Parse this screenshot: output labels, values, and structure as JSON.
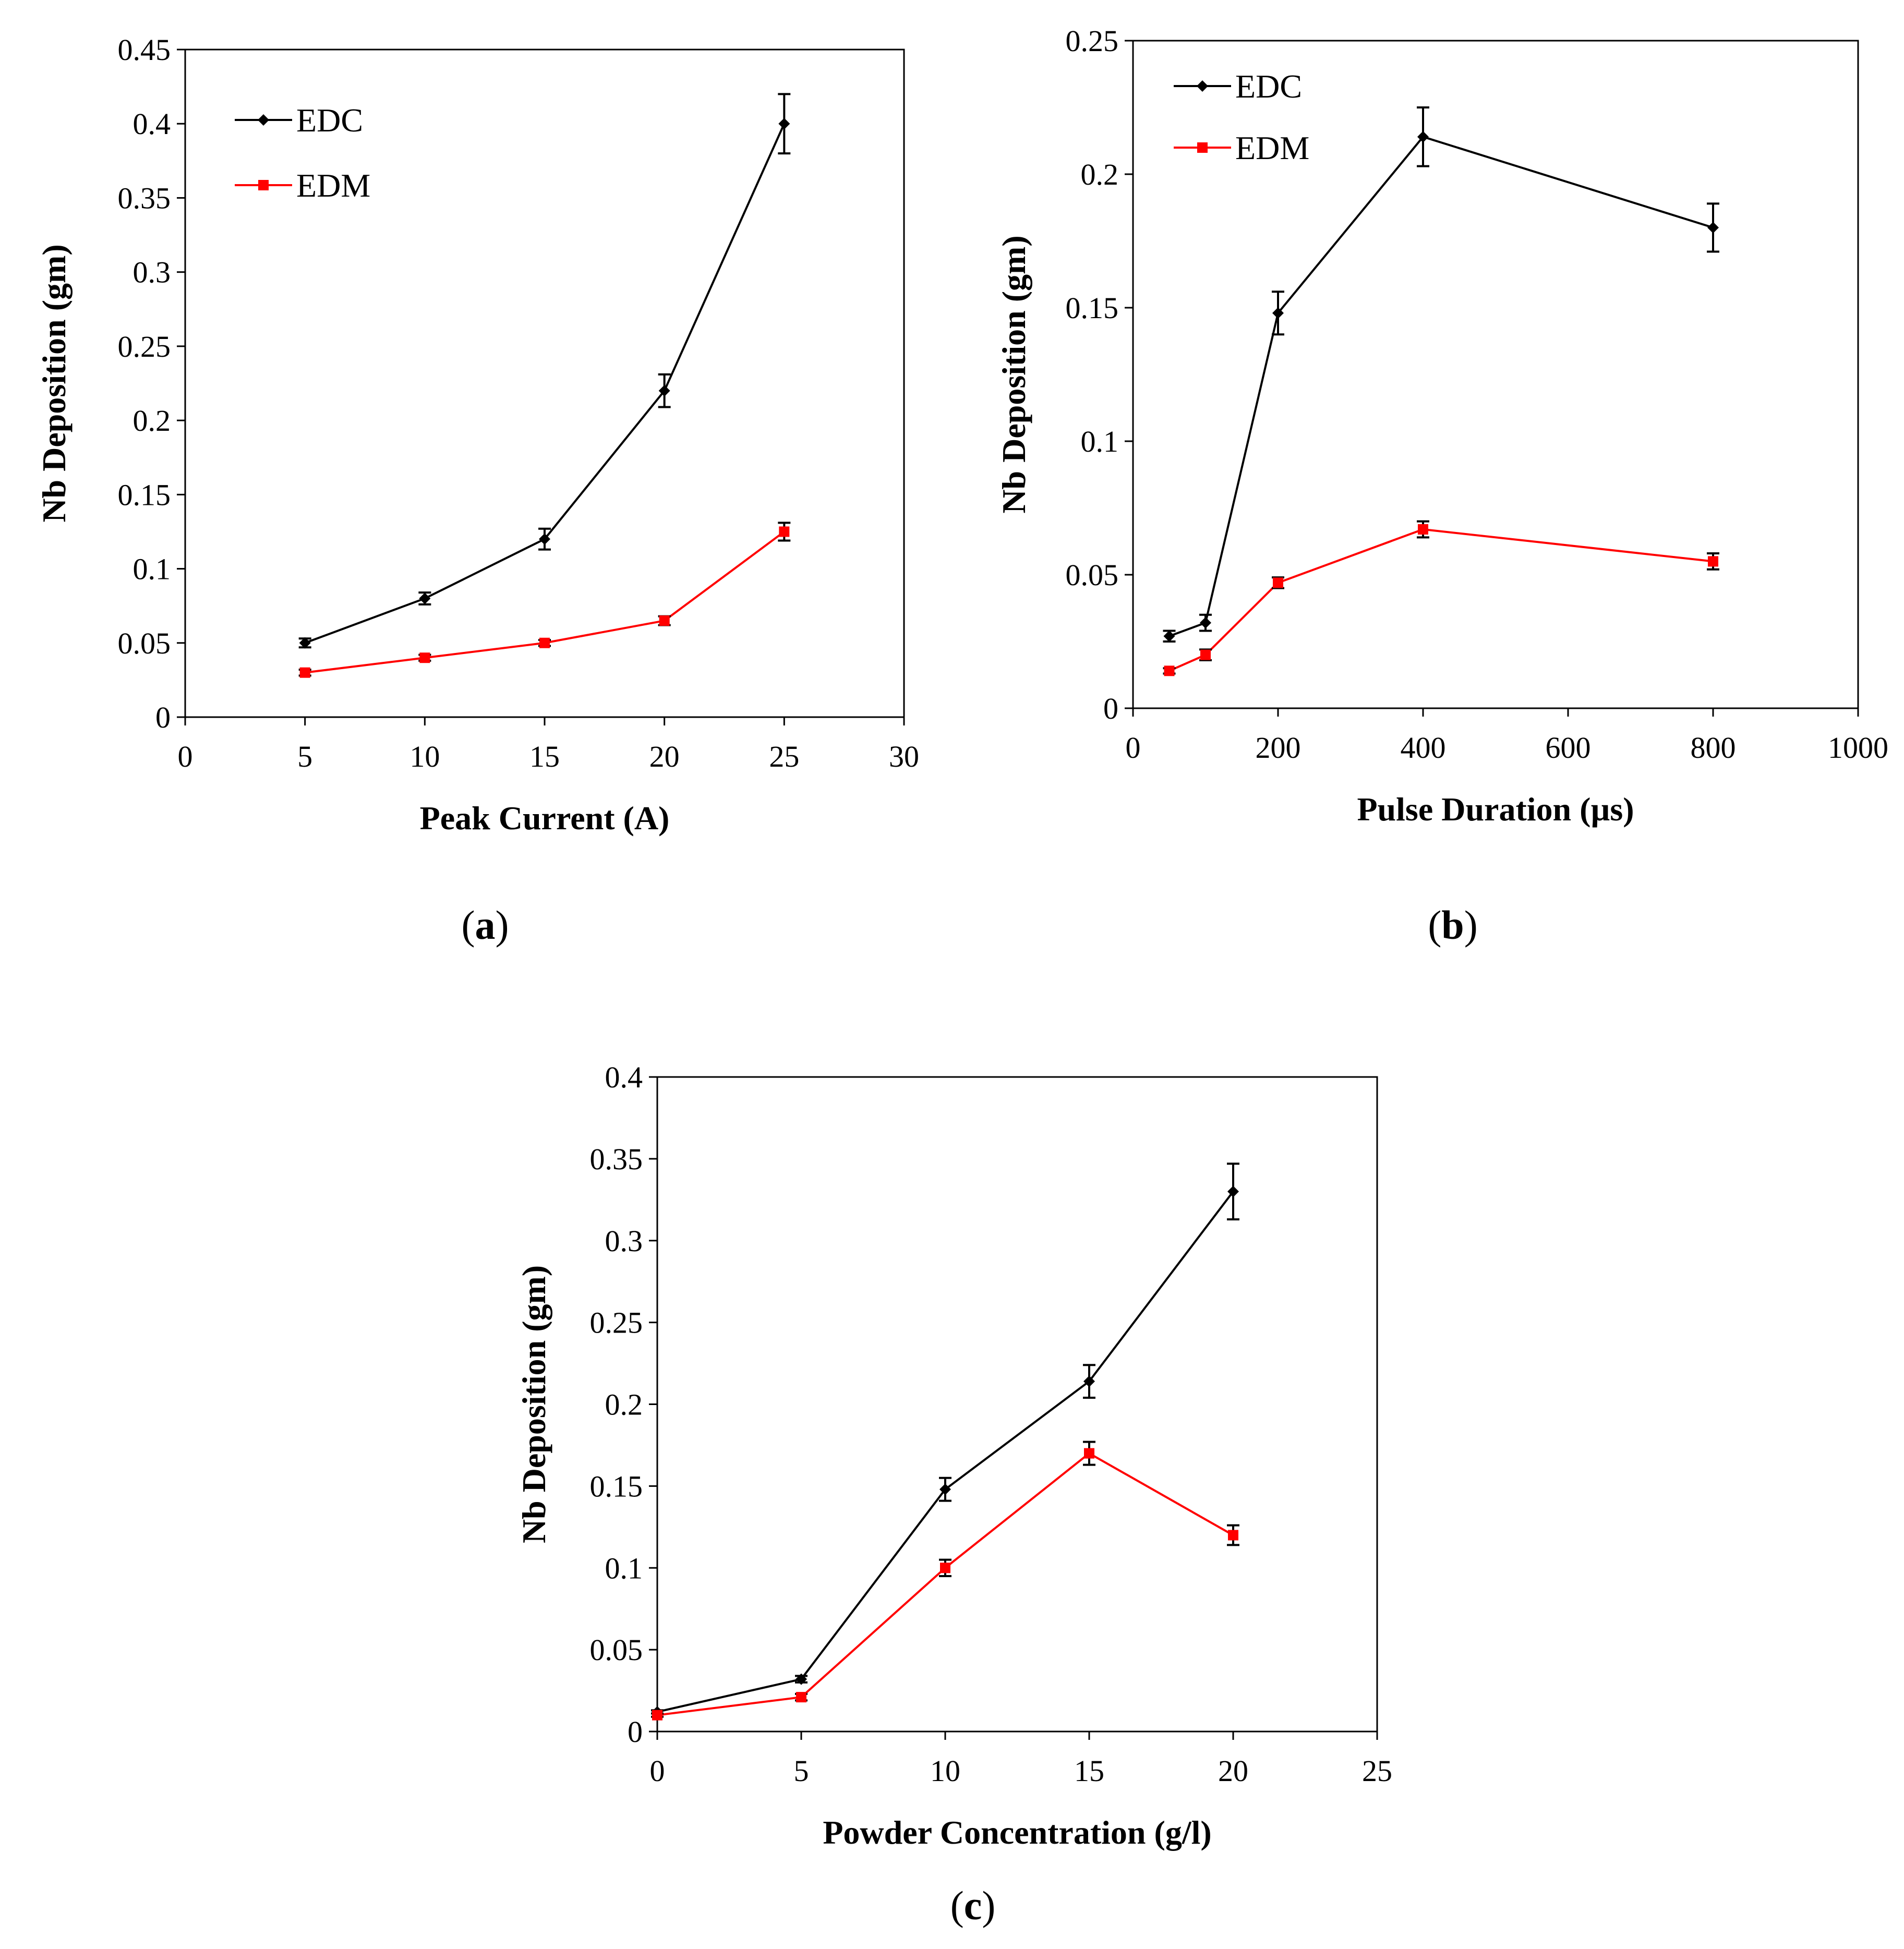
{
  "chart_data": [
    {
      "id": "a",
      "type": "line",
      "caption_letter": "a",
      "xlabel": "Peak Current (A)",
      "ylabel": "Nb Deposition (gm)",
      "xlim": [
        0,
        30
      ],
      "ylim": [
        0,
        0.45
      ],
      "xticks": [
        0,
        5,
        10,
        15,
        20,
        25,
        30
      ],
      "yticks": [
        0,
        0.05,
        0.1,
        0.15,
        0.2,
        0.25,
        0.3,
        0.35,
        0.4,
        0.45
      ],
      "xtick_labels": [
        "0",
        "5",
        "10",
        "15",
        "20",
        "25",
        "30"
      ],
      "ytick_labels": [
        "0",
        "0.05",
        "0.1",
        "0.15",
        "0.2",
        "0.25",
        "0.3",
        "0.35",
        "0.4",
        "0.45"
      ],
      "legend_position": "top-left",
      "series": [
        {
          "name": "EDC",
          "color": "#000000",
          "marker": "diamond",
          "x": [
            5,
            10,
            15,
            20,
            25
          ],
          "y": [
            0.05,
            0.08,
            0.12,
            0.22,
            0.4
          ],
          "err": [
            0.003,
            0.004,
            0.007,
            0.011,
            0.02
          ]
        },
        {
          "name": "EDM",
          "color": "#ff0000",
          "marker": "square",
          "x": [
            5,
            10,
            15,
            20,
            25
          ],
          "y": [
            0.03,
            0.04,
            0.05,
            0.065,
            0.125
          ],
          "err": [
            0.002,
            0.002,
            0.002,
            0.003,
            0.006
          ]
        }
      ]
    },
    {
      "id": "b",
      "type": "line",
      "caption_letter": "b",
      "xlabel": "Pulse Duration (µs)",
      "ylabel": "Nb Deposition (gm)",
      "xlim": [
        0,
        1000
      ],
      "ylim": [
        0,
        0.25
      ],
      "xticks": [
        0,
        200,
        400,
        600,
        800,
        1000
      ],
      "yticks": [
        0,
        0.05,
        0.1,
        0.15,
        0.2,
        0.25
      ],
      "xtick_labels": [
        "0",
        "200",
        "400",
        "600",
        "800",
        "1000"
      ],
      "ytick_labels": [
        "0",
        "0.05",
        "0.1",
        "0.15",
        "0.2",
        "0.25"
      ],
      "legend_position": "top-left",
      "series": [
        {
          "name": "EDC",
          "color": "#000000",
          "marker": "diamond",
          "x": [
            50,
            100,
            200,
            400,
            800
          ],
          "y": [
            0.027,
            0.032,
            0.148,
            0.214,
            0.18
          ],
          "err": [
            0.002,
            0.003,
            0.008,
            0.011,
            0.009
          ]
        },
        {
          "name": "EDM",
          "color": "#ff0000",
          "marker": "square",
          "x": [
            50,
            100,
            200,
            400,
            800
          ],
          "y": [
            0.014,
            0.02,
            0.047,
            0.067,
            0.055
          ],
          "err": [
            0.001,
            0.002,
            0.002,
            0.003,
            0.003
          ]
        }
      ]
    },
    {
      "id": "c",
      "type": "line",
      "caption_letter": "c",
      "xlabel": "Powder Concentration (g/l)",
      "ylabel": "Nb Deposition (gm)",
      "xlim": [
        0,
        25
      ],
      "ylim": [
        0,
        0.4
      ],
      "xticks": [
        0,
        5,
        10,
        15,
        20,
        25
      ],
      "yticks": [
        0,
        0.05,
        0.1,
        0.15,
        0.2,
        0.25,
        0.3,
        0.35,
        0.4
      ],
      "xtick_labels": [
        "0",
        "5",
        "10",
        "15",
        "20",
        "25"
      ],
      "ytick_labels": [
        "0",
        "0.05",
        "0.1",
        "0.15",
        "0.2",
        "0.25",
        "0.3",
        "0.35",
        "0.4"
      ],
      "legend_position": "none",
      "series": [
        {
          "name": "EDC",
          "color": "#000000",
          "marker": "diamond",
          "x": [
            0,
            5,
            10,
            15,
            20
          ],
          "y": [
            0.012,
            0.032,
            0.148,
            0.214,
            0.33
          ],
          "err": [
            0.001,
            0.002,
            0.007,
            0.01,
            0.017
          ]
        },
        {
          "name": "EDM",
          "color": "#ff0000",
          "marker": "square",
          "x": [
            0,
            5,
            10,
            15,
            20
          ],
          "y": [
            0.01,
            0.021,
            0.1,
            0.17,
            0.12
          ],
          "err": [
            0.001,
            0.002,
            0.005,
            0.007,
            0.006
          ]
        }
      ]
    }
  ]
}
